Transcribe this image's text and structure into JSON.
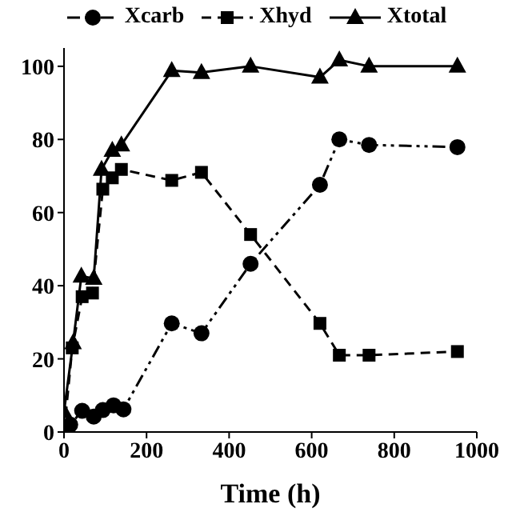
{
  "chart_data": {
    "type": "line",
    "xlabel": "Time (h)",
    "xlim": [
      0,
      1000
    ],
    "xticks": [
      0,
      200,
      400,
      600,
      800,
      1000
    ],
    "ylim": [
      0,
      105
    ],
    "yticks": [
      0,
      20,
      40,
      60,
      80,
      100
    ],
    "grid": false,
    "legend": "top",
    "series": [
      {
        "name": "Xcarb",
        "color": "#000000",
        "marker": "circle",
        "line_style": "dashdot",
        "x": [
          0,
          15,
          44,
          72,
          94,
          120,
          144,
          261,
          333,
          452,
          620,
          667,
          739,
          953
        ],
        "values": [
          0,
          2,
          5.8,
          4.2,
          6,
          7.3,
          6.2,
          29.7,
          27,
          46,
          67.6,
          80,
          78.5,
          77.9
        ]
      },
      {
        "name": "Xhyd",
        "color": "#000000",
        "marker": "square",
        "line_style": "dashed",
        "x": [
          0,
          20,
          44,
          69,
          94,
          117,
          139,
          261,
          333,
          452,
          620,
          667,
          739,
          953
        ],
        "values": [
          0,
          23,
          37,
          38,
          66.4,
          69.5,
          71.8,
          68.8,
          71,
          54,
          29.7,
          21,
          21,
          22
        ]
      },
      {
        "name": "Xtotal",
        "color": "#000000",
        "marker": "triangle",
        "line_style": "solid",
        "x": [
          0,
          22,
          42,
          72,
          91,
          117,
          139,
          261,
          333,
          452,
          620,
          667,
          739,
          953
        ],
        "values": [
          5.5,
          24.4,
          42.6,
          42,
          71.8,
          77,
          78.5,
          98.8,
          98.3,
          100,
          97,
          101.7,
          100,
          100
        ]
      }
    ]
  }
}
